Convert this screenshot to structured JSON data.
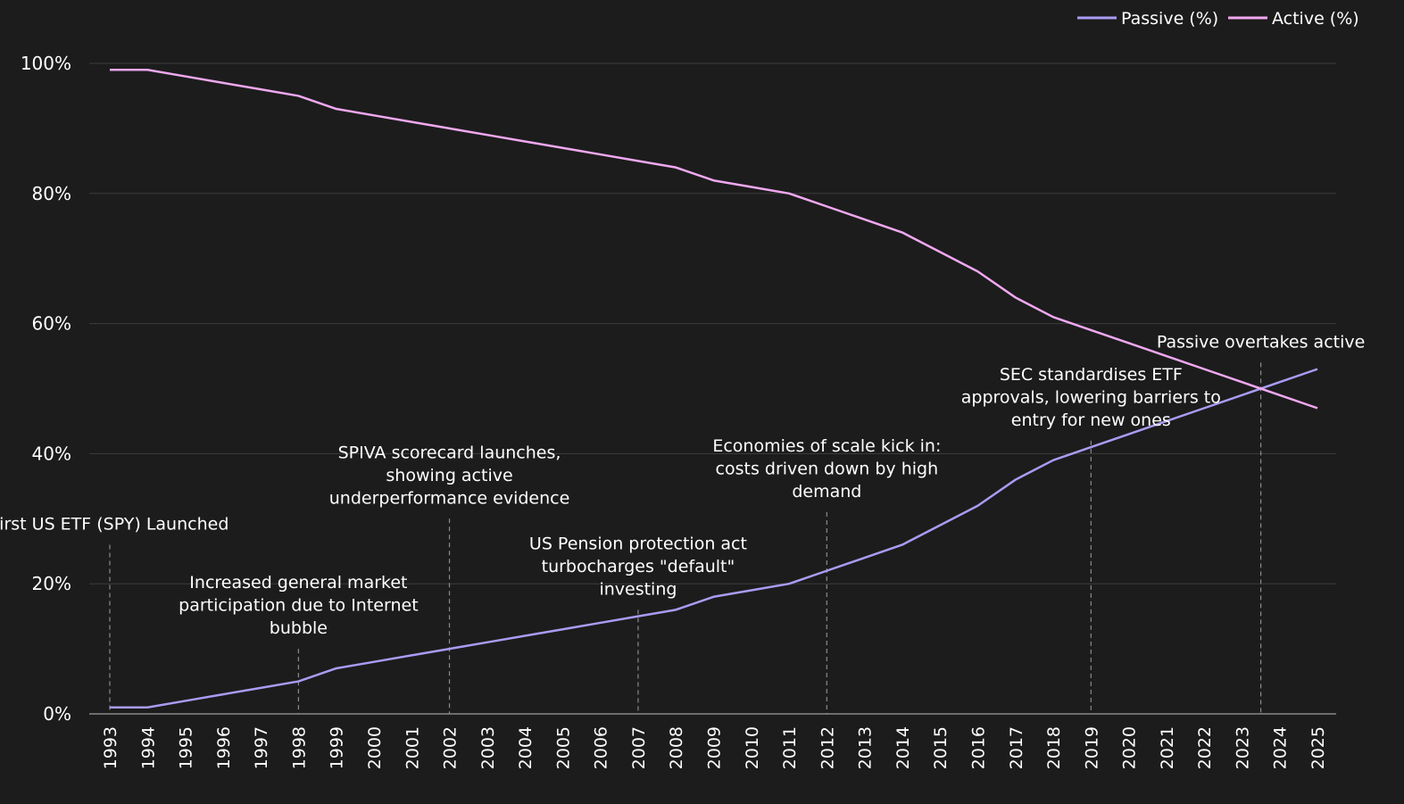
{
  "chart_data": {
    "type": "line",
    "title": "",
    "xlabel": "",
    "ylabel": "",
    "ylim": [
      0,
      100
    ],
    "yticks": [
      0,
      20,
      40,
      60,
      80,
      100
    ],
    "ytick_labels": [
      "0%",
      "20%",
      "40%",
      "60%",
      "80%",
      "100%"
    ],
    "grid": true,
    "legend_position": "top-right",
    "x": [
      "1993",
      "1994",
      "1995",
      "1996",
      "1997",
      "1998",
      "1999",
      "2000",
      "2001",
      "2002",
      "2003",
      "2004",
      "2005",
      "2006",
      "2007",
      "2008",
      "2009",
      "2010",
      "2011",
      "2012",
      "2013",
      "2014",
      "2015",
      "2016",
      "2017",
      "2018",
      "2019",
      "2020",
      "2021",
      "2022",
      "2023",
      "2024",
      "2025"
    ],
    "series": [
      {
        "name": "Passive (%)",
        "color": "#a89cf4",
        "values": [
          1,
          1,
          2,
          3,
          4,
          5,
          7,
          8,
          9,
          10,
          11,
          12,
          13,
          14,
          15,
          16,
          18,
          19,
          20,
          22,
          24,
          26,
          29,
          32,
          36,
          39,
          41,
          43,
          45,
          47,
          49,
          51,
          53
        ]
      },
      {
        "name": "Active (%)",
        "color": "#f0a8f0",
        "values": [
          99,
          99,
          98,
          97,
          96,
          95,
          93,
          92,
          91,
          90,
          89,
          88,
          87,
          86,
          85,
          84,
          82,
          81,
          80,
          78,
          76,
          74,
          71,
          68,
          64,
          61,
          59,
          57,
          55,
          53,
          51,
          49,
          47
        ]
      }
    ],
    "annotations": [
      {
        "x": 1993,
        "y_top": 26,
        "lines": [
          "First US ETF (SPY) Launched"
        ]
      },
      {
        "x": 1998,
        "y_top": 10,
        "lines": [
          "Increased general market",
          "participation due to Internet",
          "bubble"
        ]
      },
      {
        "x": 2002,
        "y_top": 30,
        "lines": [
          "SPIVA scorecard launches,",
          "showing active",
          "underperformance evidence"
        ]
      },
      {
        "x": 2007,
        "y_top": 16,
        "lines": [
          "US Pension protection act",
          "turbocharges \"default\"",
          "investing"
        ]
      },
      {
        "x": 2012,
        "y_top": 31,
        "lines": [
          "Economies of scale kick in:",
          "costs driven down by high",
          "demand"
        ]
      },
      {
        "x": 2019,
        "y_top": 42,
        "lines": [
          "SEC standardises ETF",
          "approvals, lowering barriers to",
          "entry for new ones"
        ]
      },
      {
        "x": 2023.5,
        "y_top": 54,
        "lines": [
          "Passive overtakes active"
        ]
      }
    ]
  }
}
